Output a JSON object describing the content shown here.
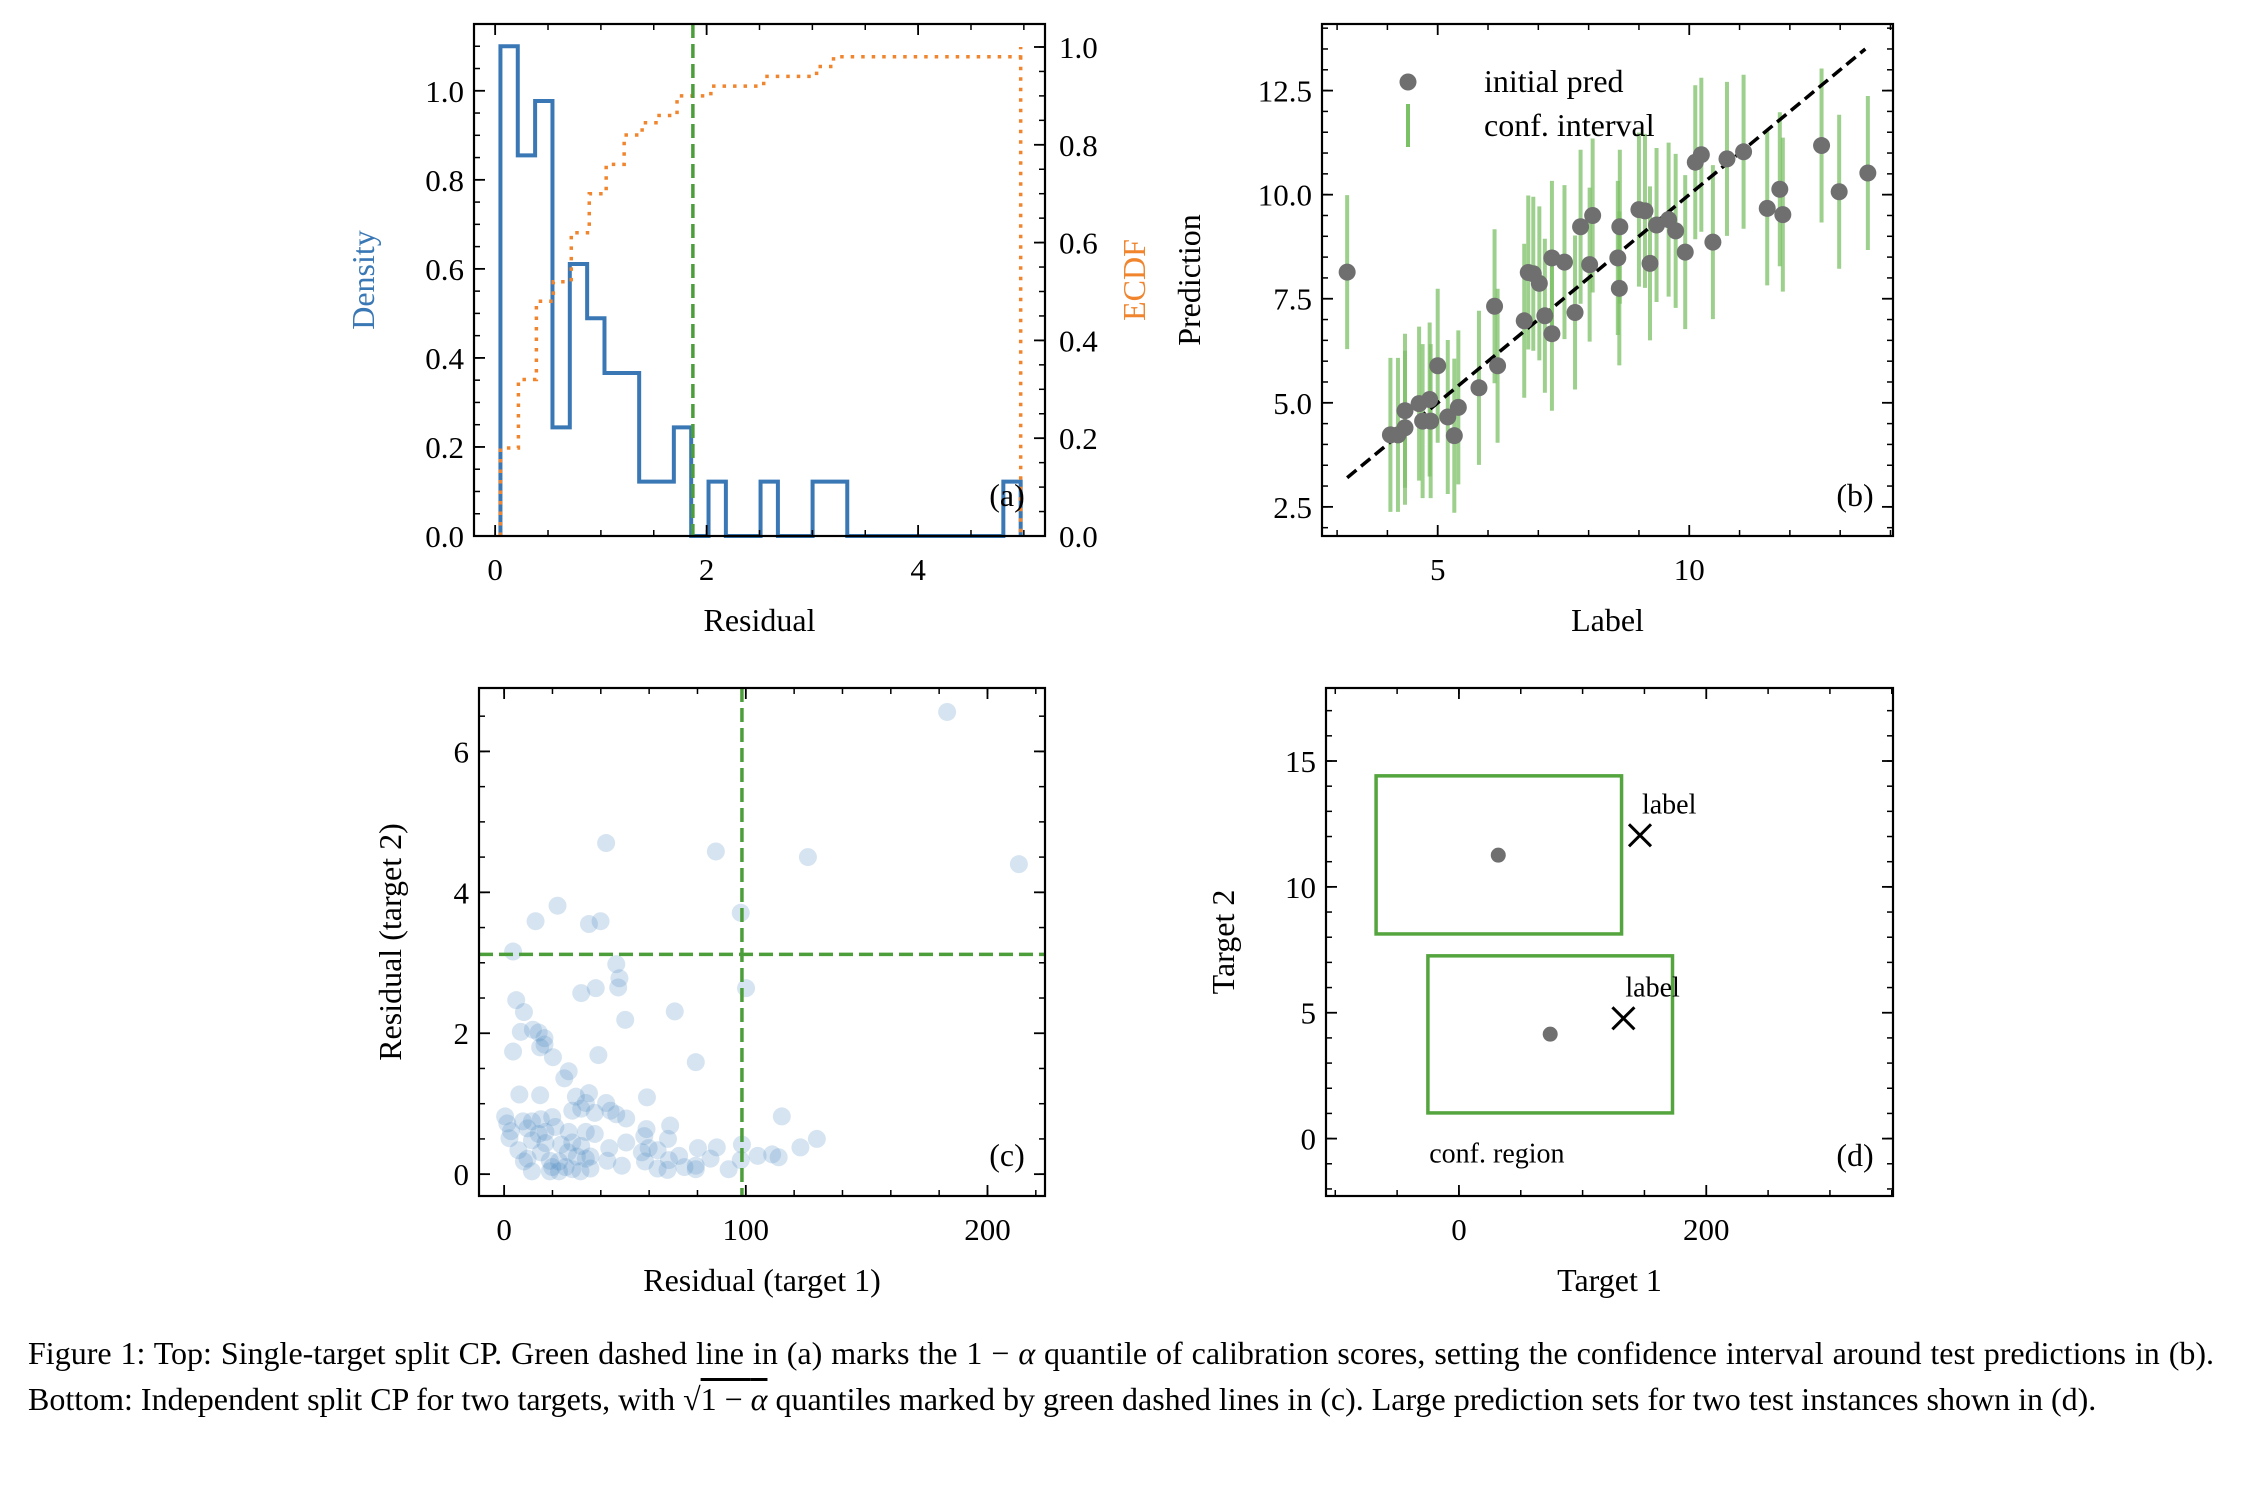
{
  "colors": {
    "histogram": "#3a78b5",
    "ecdf": "#f0852d",
    "quantile_line": "#4c9e3a",
    "prediction_point": "#6f6f6f",
    "interval": "#7cc065",
    "residual_point": "#4682be",
    "region_box": "#55a53f",
    "label_marker": "#000000"
  },
  "chart_data": [
    {
      "id": "a",
      "type": "bar",
      "panel_label": "(a)",
      "xlabel": "Residual",
      "ylabel": "Density",
      "ylabel_right": "ECDF",
      "xlim": [
        -0.2,
        5.2
      ],
      "ylim": [
        0,
        1.15
      ],
      "ylim_right": [
        0,
        1.047
      ],
      "xticks": [
        0,
        2,
        4
      ],
      "xtick_labels": [
        "0",
        "2",
        "4"
      ],
      "yticks": [
        0,
        0.2,
        0.4,
        0.6,
        0.8,
        1.0
      ],
      "ytick_labels": [
        "0.0",
        "0.2",
        "0.4",
        "0.6",
        "0.8",
        "1.0"
      ],
      "yticks_right": [
        0,
        0.2,
        0.4,
        0.6,
        0.8,
        1.0
      ],
      "ytick_labels_right": [
        "0.0",
        "0.2",
        "0.4",
        "0.6",
        "0.8",
        "1.0"
      ],
      "histogram": {
        "range": [
          0.05,
          4.97
        ],
        "bins": 30,
        "density": [
          1.1,
          0.855,
          0.977,
          0.244,
          0.611,
          0.489,
          0.366,
          0.366,
          0.122,
          0.122,
          0.244,
          0,
          0.122,
          0,
          0,
          0.122,
          0,
          0,
          0.122,
          0.122,
          0,
          0,
          0,
          0,
          0,
          0,
          0,
          0,
          0,
          0.122
        ]
      },
      "ecdf": {
        "x": [
          0.05,
          0.22,
          0.39,
          0.55,
          0.72,
          0.89,
          1.05,
          1.22,
          1.39,
          1.55,
          1.72,
          2.04,
          2.54,
          3.04,
          3.2,
          4.97
        ],
        "y": [
          0.18,
          0.32,
          0.48,
          0.52,
          0.62,
          0.7,
          0.76,
          0.82,
          0.845,
          0.86,
          0.9,
          0.92,
          0.94,
          0.96,
          0.98,
          1.0
        ],
        "end_drop_x": 4.97
      },
      "quantile": 1.87
    },
    {
      "id": "b",
      "type": "scatter",
      "panel_label": "(b)",
      "xlabel": "Label",
      "ylabel": "Prediction",
      "xlim": [
        2.7,
        14.05
      ],
      "ylim": [
        1.8,
        14.1
      ],
      "xticks": [
        5,
        10
      ],
      "xtick_labels": [
        "5",
        "10"
      ],
      "yticks": [
        2.5,
        5.0,
        7.5,
        10.0,
        12.5
      ],
      "ytick_labels": [
        "2.5",
        "5.0",
        "7.5",
        "10.0",
        "12.5"
      ],
      "legend": {
        "placement": "top-left",
        "entries": [
          "initial pred",
          "conf. interval"
        ]
      },
      "interval_halfwidth": 1.85,
      "identity_line": [
        3.2,
        13.5
      ],
      "points": [
        [
          3.2,
          8.14
        ],
        [
          4.06,
          4.23
        ],
        [
          4.21,
          4.23
        ],
        [
          4.35,
          4.81
        ],
        [
          4.35,
          4.4
        ],
        [
          4.63,
          4.98
        ],
        [
          4.7,
          4.56
        ],
        [
          4.84,
          5.08
        ],
        [
          4.86,
          4.56
        ],
        [
          5.0,
          5.89
        ],
        [
          5.2,
          4.66
        ],
        [
          5.33,
          4.21
        ],
        [
          5.41,
          4.89
        ],
        [
          5.82,
          5.36
        ],
        [
          6.13,
          7.32
        ],
        [
          6.19,
          5.89
        ],
        [
          6.72,
          6.97
        ],
        [
          6.8,
          8.13
        ],
        [
          6.9,
          8.1
        ],
        [
          7.02,
          7.87
        ],
        [
          7.13,
          7.09
        ],
        [
          7.27,
          8.48
        ],
        [
          7.27,
          6.66
        ],
        [
          7.52,
          8.38
        ],
        [
          7.73,
          7.17
        ],
        [
          7.84,
          9.23
        ],
        [
          8.02,
          8.32
        ],
        [
          8.08,
          9.5
        ],
        [
          8.58,
          8.48
        ],
        [
          8.62,
          9.23
        ],
        [
          8.61,
          7.75
        ],
        [
          9.0,
          9.64
        ],
        [
          9.12,
          9.61
        ],
        [
          9.22,
          8.35
        ],
        [
          9.35,
          9.27
        ],
        [
          9.59,
          9.4
        ],
        [
          9.73,
          9.13
        ],
        [
          9.92,
          8.62
        ],
        [
          10.12,
          10.78
        ],
        [
          10.24,
          10.96
        ],
        [
          10.47,
          8.86
        ],
        [
          10.75,
          10.86
        ],
        [
          11.08,
          11.03
        ],
        [
          11.55,
          9.67
        ],
        [
          11.8,
          10.13
        ],
        [
          11.86,
          9.52
        ],
        [
          12.63,
          11.18
        ],
        [
          12.98,
          10.07
        ],
        [
          13.55,
          10.52
        ]
      ]
    },
    {
      "id": "c",
      "type": "scatter",
      "panel_label": "(c)",
      "xlabel": "Residual (target 1)",
      "ylabel": "Residual (target 2)",
      "xlim": [
        -10.4,
        223.8
      ],
      "ylim": [
        -0.31,
        6.9
      ],
      "xticks": [
        0,
        100,
        200
      ],
      "xtick_labels": [
        "0",
        "100",
        "200"
      ],
      "yticks": [
        0,
        2,
        4,
        6
      ],
      "ytick_labels": [
        "0",
        "2",
        "4",
        "6"
      ],
      "quantile_x": 98.4,
      "quantile_y": 3.12,
      "points": [
        [
          183.3,
          6.56
        ],
        [
          42.2,
          4.7
        ],
        [
          87.6,
          4.58
        ],
        [
          125.7,
          4.5
        ],
        [
          213.0,
          4.4
        ],
        [
          22.1,
          3.81
        ],
        [
          13.0,
          3.59
        ],
        [
          35.1,
          3.55
        ],
        [
          39.9,
          3.59
        ],
        [
          97.9,
          3.71
        ],
        [
          3.7,
          3.16
        ],
        [
          46.4,
          2.98
        ],
        [
          47.7,
          2.78
        ],
        [
          47.2,
          2.65
        ],
        [
          31.9,
          2.57
        ],
        [
          37.9,
          2.64
        ],
        [
          100.1,
          2.64
        ],
        [
          5.0,
          2.47
        ],
        [
          8.2,
          2.3
        ],
        [
          70.6,
          2.31
        ],
        [
          50.1,
          2.19
        ],
        [
          6.9,
          2.02
        ],
        [
          11.9,
          2.05
        ],
        [
          14.3,
          2.01
        ],
        [
          16.7,
          1.93
        ],
        [
          14.9,
          1.8
        ],
        [
          16.7,
          1.84
        ],
        [
          3.7,
          1.74
        ],
        [
          20.2,
          1.66
        ],
        [
          39.0,
          1.69
        ],
        [
          79.3,
          1.59
        ],
        [
          26.7,
          1.46
        ],
        [
          24.9,
          1.36
        ],
        [
          6.3,
          1.13
        ],
        [
          14.9,
          1.12
        ],
        [
          59.1,
          1.09
        ],
        [
          35.1,
          1.15
        ],
        [
          29.7,
          1.1
        ],
        [
          33.8,
          1.01
        ],
        [
          42.2,
          1.01
        ],
        [
          31.9,
          0.93
        ],
        [
          37.5,
          0.87
        ],
        [
          44.0,
          0.9
        ],
        [
          46.4,
          0.85
        ],
        [
          50.5,
          0.79
        ],
        [
          28.2,
          0.9
        ],
        [
          114.9,
          0.82
        ],
        [
          0.4,
          0.82
        ],
        [
          1.3,
          0.72
        ],
        [
          7.8,
          0.75
        ],
        [
          11.5,
          0.75
        ],
        [
          15.2,
          0.78
        ],
        [
          19.9,
          0.81
        ],
        [
          68.7,
          0.69
        ],
        [
          21.2,
          0.67
        ],
        [
          9.7,
          0.65
        ],
        [
          2.8,
          0.61
        ],
        [
          14.3,
          0.57
        ],
        [
          17.1,
          0.6
        ],
        [
          26.7,
          0.6
        ],
        [
          33.8,
          0.6
        ],
        [
          37.5,
          0.57
        ],
        [
          58.9,
          0.64
        ],
        [
          58.0,
          0.54
        ],
        [
          67.8,
          0.5
        ],
        [
          129.4,
          0.5
        ],
        [
          2.2,
          0.51
        ],
        [
          11.5,
          0.48
        ],
        [
          17.1,
          0.44
        ],
        [
          23.6,
          0.42
        ],
        [
          28.2,
          0.45
        ],
        [
          31.9,
          0.4
        ],
        [
          98.4,
          0.42
        ],
        [
          43.5,
          0.37
        ],
        [
          50.5,
          0.45
        ],
        [
          59.8,
          0.37
        ],
        [
          80.2,
          0.37
        ],
        [
          88.0,
          0.38
        ],
        [
          122.6,
          0.38
        ],
        [
          5.9,
          0.34
        ],
        [
          15.2,
          0.31
        ],
        [
          26.4,
          0.31
        ],
        [
          30.1,
          0.25
        ],
        [
          57.0,
          0.31
        ],
        [
          63.5,
          0.34
        ],
        [
          72.4,
          0.26
        ],
        [
          104.9,
          0.26
        ],
        [
          110.9,
          0.28
        ],
        [
          113.6,
          0.24
        ],
        [
          9.7,
          0.22
        ],
        [
          18.9,
          0.19
        ],
        [
          22.7,
          0.18
        ],
        [
          33.8,
          0.22
        ],
        [
          42.7,
          0.19
        ],
        [
          58.3,
          0.18
        ],
        [
          68.2,
          0.2
        ],
        [
          85.4,
          0.22
        ],
        [
          97.9,
          0.2
        ],
        [
          8.2,
          0.18
        ],
        [
          19.9,
          0.1
        ],
        [
          28.2,
          0.07
        ],
        [
          35.7,
          0.08
        ],
        [
          48.7,
          0.12
        ],
        [
          63.5,
          0.08
        ],
        [
          74.6,
          0.1
        ],
        [
          79.3,
          0.12
        ],
        [
          11.5,
          0.04
        ],
        [
          18.9,
          0.04
        ],
        [
          31.6,
          0.04
        ],
        [
          67.6,
          0.06
        ],
        [
          79.3,
          0.07
        ],
        [
          92.9,
          0.07
        ],
        [
          22.7,
          0.04
        ],
        [
          25.4,
          0.1
        ],
        [
          35.7,
          0.25
        ]
      ]
    },
    {
      "id": "d",
      "type": "scatter",
      "panel_label": "(d)",
      "xlabel": "Target 1",
      "ylabel": "Target 2",
      "xlim": [
        -107.5,
        351
      ],
      "ylim": [
        -2.28,
        17.9
      ],
      "xticks": [
        0,
        200
      ],
      "xtick_labels": [
        "0",
        "200"
      ],
      "yticks": [
        0,
        5,
        10,
        15
      ],
      "ytick_labels": [
        "0",
        "5",
        "10",
        "15"
      ],
      "region_text": "conf. region",
      "instances": [
        {
          "prediction": [
            31.8,
            11.26
          ],
          "label": [
            146.4,
            12.05
          ],
          "label_text": "label",
          "region_x": [
            -67,
            131.5
          ],
          "region_y": [
            8.13,
            14.41
          ]
        },
        {
          "prediction": [
            73.8,
            4.15
          ],
          "label": [
            133.0,
            4.78
          ],
          "label_text": "label",
          "region_x": [
            -25.1,
            172.7
          ],
          "region_y": [
            1.02,
            7.26
          ]
        }
      ]
    }
  ],
  "caption": {
    "prefix": "Figure 1:",
    "part1": " Top: Single-target split CP. Green dashed line in (a) marks the ",
    "math1": "1 − ",
    "alpha": "α",
    "part2": " quantile of calibration scores, setting the confidence interval around test predictions in (b).  Bottom: Independent split CP for two targets, with ",
    "sqrt_sign": "√",
    "math2": "1 − ",
    "part3": " quantiles marked by green dashed lines in (c). Large prediction sets for two test instances shown in (d)."
  }
}
